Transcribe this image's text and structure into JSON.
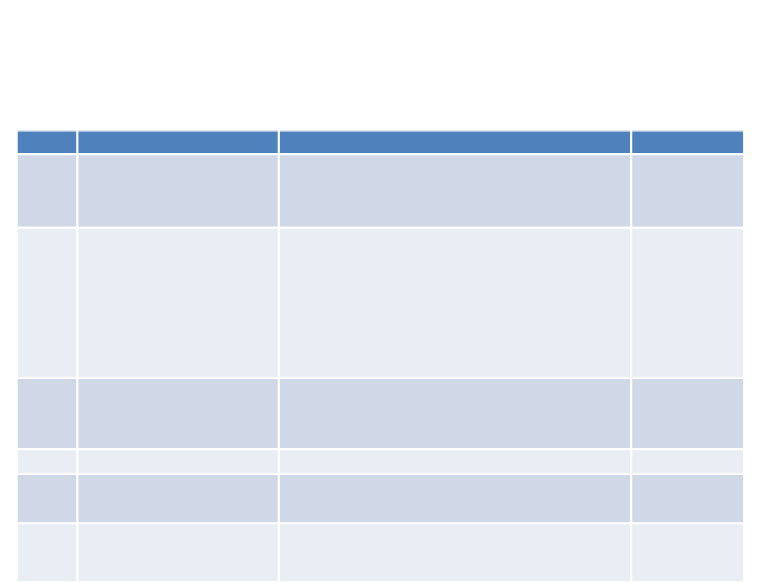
{
  "slide": {
    "background": "#FFFFFF"
  },
  "table": {
    "description": "empty four-column banded table, no visible text in any cell",
    "colors": {
      "header_fill": "#4F81BD",
      "header_top_border": "#A7BFDC",
      "band_dark": "#D0D8E8",
      "band_light": "#E9EDF4",
      "cell_gap": "#FFFFFF"
    },
    "columns": [
      {
        "header": ""
      },
      {
        "header": ""
      },
      {
        "header": ""
      },
      {
        "header": ""
      }
    ],
    "rows": [
      {
        "band": "dark",
        "cells": [
          "",
          "",
          "",
          ""
        ]
      },
      {
        "band": "light",
        "cells": [
          "",
          "",
          "",
          ""
        ]
      },
      {
        "band": "dark",
        "cells": [
          "",
          "",
          "",
          ""
        ]
      },
      {
        "band": "light",
        "cells": [
          "",
          "",
          "",
          ""
        ]
      },
      {
        "band": "dark",
        "cells": [
          "",
          "",
          "",
          ""
        ]
      },
      {
        "band": "light",
        "cells": [
          "",
          "",
          "",
          ""
        ]
      }
    ]
  }
}
